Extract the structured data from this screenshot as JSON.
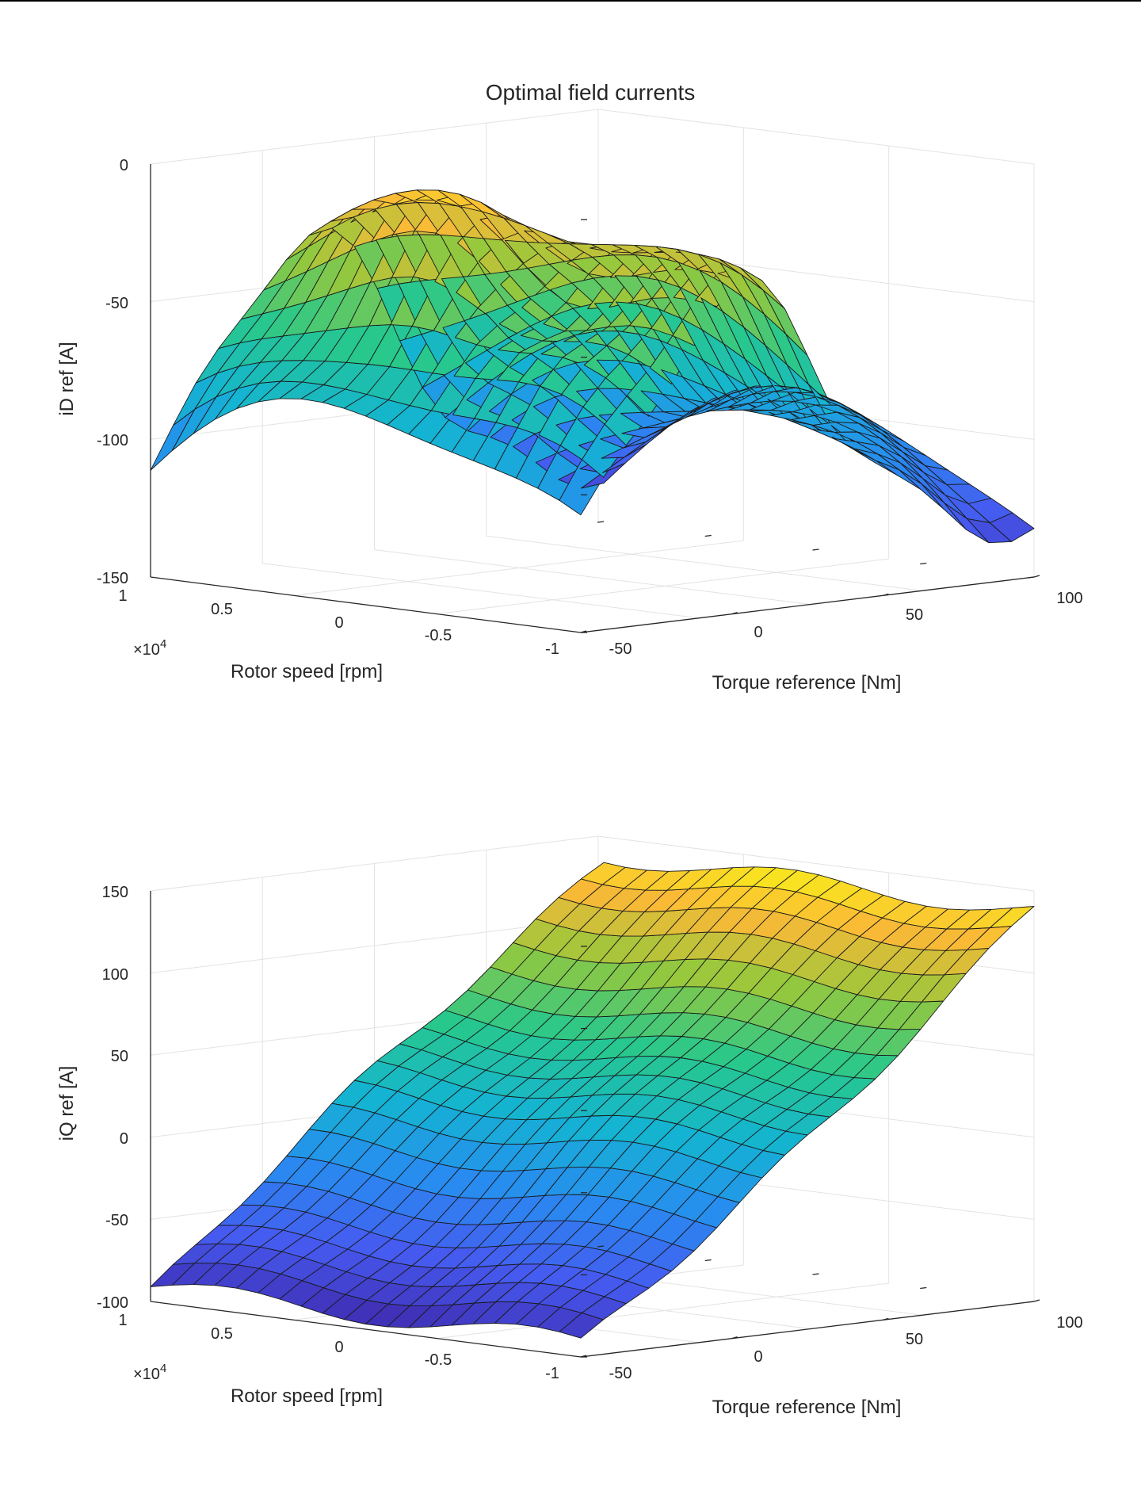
{
  "figure": {
    "title": "Optimal field currents"
  },
  "chart_data": [
    {
      "type": "surface",
      "zlabel": "iD ref [A]",
      "ylabel": "Rotor speed [rpm]",
      "xlabel": "Torque reference [Nm]",
      "y_exponent_base": "×10",
      "y_exponent_power": "4",
      "zlim": [
        -150,
        0
      ],
      "ylim": [
        -10000,
        10000
      ],
      "xlim": [
        -50,
        100
      ],
      "ztick_labels": [
        "0",
        "-50",
        "-100",
        "-150"
      ],
      "ytick_labels": [
        "1",
        "0.5",
        "0",
        "-0.5",
        "-1"
      ],
      "xtick_labels": [
        "-50",
        "0",
        "50",
        "100"
      ],
      "colormap": "parula",
      "surface_peak": -8,
      "surface_min": -133,
      "approx_grid_points": 20
    },
    {
      "type": "surface",
      "zlabel": "iQ ref [A]",
      "ylabel": "Rotor speed [rpm]",
      "xlabel": "Torque reference [Nm]",
      "y_exponent_base": "×10",
      "y_exponent_power": "4",
      "zlim": [
        -100,
        150
      ],
      "ylim": [
        -10000,
        10000
      ],
      "xlim": [
        -50,
        100
      ],
      "ztick_labels": [
        "150",
        "100",
        "50",
        "0",
        "-50",
        "-100"
      ],
      "ytick_labels": [
        "1",
        "0.5",
        "0",
        "-0.5",
        "-1"
      ],
      "xtick_labels": [
        "-50",
        "0",
        "50",
        "100"
      ],
      "colormap": "parula",
      "surface_peak": 140,
      "surface_min": -95,
      "approx_grid_points": 20
    }
  ]
}
